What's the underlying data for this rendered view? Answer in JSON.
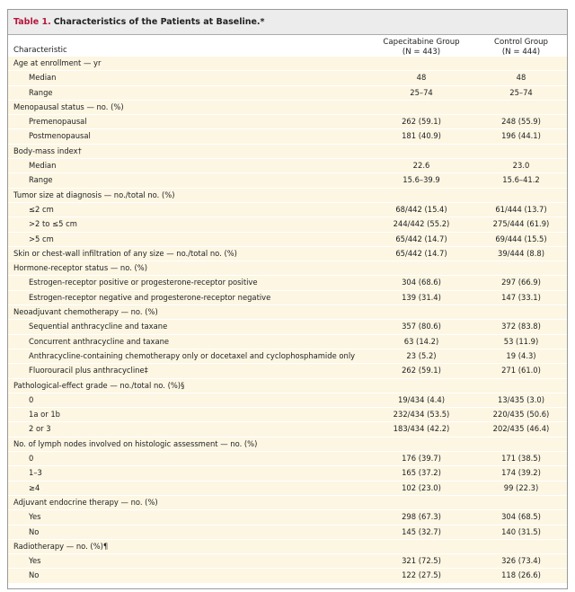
{
  "title": {
    "label": "Table 1.",
    "text": "Characteristics of the Patients at Baseline.*"
  },
  "header": {
    "characteristic": "Characteristic",
    "capecitabine": {
      "name": "Capecitabine Group",
      "n": "(N = 443)"
    },
    "control": {
      "name": "Control Group",
      "n": "(N = 444)"
    }
  },
  "rows": [
    {
      "label": "Age at enrollment — yr",
      "sub": false,
      "cap": "",
      "ctl": ""
    },
    {
      "label": "Median",
      "sub": true,
      "cap": "48",
      "ctl": "48"
    },
    {
      "label": "Range",
      "sub": true,
      "cap": "25–74",
      "ctl": "25–74"
    },
    {
      "label": "Menopausal status — no. (%)",
      "sub": false,
      "cap": "",
      "ctl": ""
    },
    {
      "label": "Premenopausal",
      "sub": true,
      "cap": "262 (59.1)",
      "ctl": "248 (55.9)"
    },
    {
      "label": "Postmenopausal",
      "sub": true,
      "cap": "181 (40.9)",
      "ctl": "196 (44.1)"
    },
    {
      "label": "Body-mass index†",
      "sub": false,
      "cap": "",
      "ctl": ""
    },
    {
      "label": "Median",
      "sub": true,
      "cap": "22.6",
      "ctl": "23.0"
    },
    {
      "label": "Range",
      "sub": true,
      "cap": "15.6–39.9",
      "ctl": "15.6–41.2"
    },
    {
      "label": "Tumor size at diagnosis — no./total no. (%)",
      "sub": false,
      "cap": "",
      "ctl": ""
    },
    {
      "label": "≤2 cm",
      "sub": true,
      "cap": "68/442 (15.4)",
      "ctl": "61/444 (13.7)"
    },
    {
      "label": ">2 to ≤5 cm",
      "sub": true,
      "cap": "244/442 (55.2)",
      "ctl": "275/444 (61.9)"
    },
    {
      "label": ">5 cm",
      "sub": true,
      "cap": "65/442 (14.7)",
      "ctl": "69/444 (15.5)"
    },
    {
      "label": "Skin or chest-wall infiltration of any size — no./total no. (%)",
      "sub": false,
      "cap": "65/442 (14.7)",
      "ctl": "39/444 (8.8)"
    },
    {
      "label": "Hormone-receptor status — no. (%)",
      "sub": false,
      "cap": "",
      "ctl": ""
    },
    {
      "label": "Estrogen-receptor positive or progesterone-receptor positive",
      "sub": true,
      "cap": "304 (68.6)",
      "ctl": "297 (66.9)"
    },
    {
      "label": "Estrogen-receptor negative and progesterone-receptor negative",
      "sub": true,
      "cap": "139 (31.4)",
      "ctl": "147 (33.1)"
    },
    {
      "label": "Neoadjuvant chemotherapy — no. (%)",
      "sub": false,
      "cap": "",
      "ctl": ""
    },
    {
      "label": "Sequential anthracycline and taxane",
      "sub": true,
      "cap": "357 (80.6)",
      "ctl": "372 (83.8)"
    },
    {
      "label": "Concurrent anthracycline and taxane",
      "sub": true,
      "cap": "63 (14.2)",
      "ctl": "53 (11.9)"
    },
    {
      "label": "Anthracycline-containing chemotherapy only or docetaxel and cyclophosphamide only",
      "sub": true,
      "cap": "23 (5.2)",
      "ctl": "19 (4.3)"
    },
    {
      "label": "Fluorouracil plus anthracycline‡",
      "sub": true,
      "cap": "262 (59.1)",
      "ctl": "271 (61.0)"
    },
    {
      "label": "Pathological-effect grade — no./total no. (%)§",
      "sub": false,
      "cap": "",
      "ctl": ""
    },
    {
      "label": "0",
      "sub": true,
      "cap": "19/434 (4.4)",
      "ctl": "13/435 (3.0)"
    },
    {
      "label": "1a or 1b",
      "sub": true,
      "cap": "232/434 (53.5)",
      "ctl": "220/435 (50.6)"
    },
    {
      "label": "2 or 3",
      "sub": true,
      "cap": "183/434 (42.2)",
      "ctl": "202/435 (46.4)"
    },
    {
      "label": "No. of lymph nodes involved on histologic assessment — no. (%)",
      "sub": false,
      "cap": "",
      "ctl": ""
    },
    {
      "label": "0",
      "sub": true,
      "cap": "176 (39.7)",
      "ctl": "171 (38.5)"
    },
    {
      "label": "1–3",
      "sub": true,
      "cap": "165 (37.2)",
      "ctl": "174 (39.2)"
    },
    {
      "label": "≥4",
      "sub": true,
      "cap": "102 (23.0)",
      "ctl": "99 (22.3)"
    },
    {
      "label": "Adjuvant endocrine therapy — no. (%)",
      "sub": false,
      "cap": "",
      "ctl": ""
    },
    {
      "label": "Yes",
      "sub": true,
      "cap": "298 (67.3)",
      "ctl": "304 (68.5)"
    },
    {
      "label": "No",
      "sub": true,
      "cap": "145 (32.7)",
      "ctl": "140 (31.5)"
    },
    {
      "label": "Radiotherapy — no. (%)¶",
      "sub": false,
      "cap": "",
      "ctl": ""
    },
    {
      "label": "Yes",
      "sub": true,
      "cap": "321 (72.5)",
      "ctl": "326 (73.4)"
    },
    {
      "label": "No",
      "sub": true,
      "cap": "122 (27.5)",
      "ctl": "118 (26.6)"
    }
  ]
}
